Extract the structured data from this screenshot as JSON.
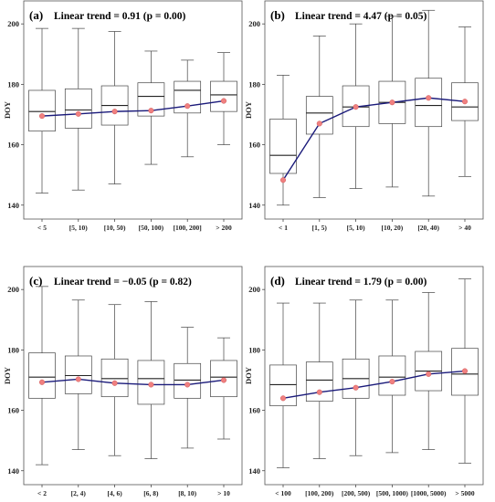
{
  "chart_data": [
    {
      "type": "box",
      "panel_label": "(a)",
      "title": "Linear trend = 0.91 (p = 0.00)",
      "ylabel": "DOY",
      "ylim": [
        136,
        207
      ],
      "yticks": [
        140,
        160,
        180,
        200
      ],
      "categories": [
        "< 5",
        "[5, 10)",
        "[10, 50)",
        "[50, 100)",
        "[100, 200]",
        "> 200"
      ],
      "boxes": [
        {
          "min": 144,
          "q1": 164.5,
          "median": 171,
          "q3": 178,
          "max": 198.5
        },
        {
          "min": 145,
          "q1": 165.5,
          "median": 171.5,
          "q3": 178.5,
          "max": 198.5
        },
        {
          "min": 147,
          "q1": 166.5,
          "median": 173,
          "q3": 179.5,
          "max": 197.5
        },
        {
          "min": 153.5,
          "q1": 169.5,
          "median": 176,
          "q3": 180.5,
          "max": 191
        },
        {
          "min": 156,
          "q1": 170.5,
          "median": 178,
          "q3": 181,
          "max": 188
        },
        {
          "min": 160,
          "q1": 171,
          "median": 176.5,
          "q3": 181,
          "max": 190.5
        }
      ],
      "means": [
        169.5,
        170.2,
        171,
        171.3,
        172.8,
        174.5
      ]
    },
    {
      "type": "box",
      "panel_label": "(b)",
      "title": "Linear trend = 4.47 (p = 0.05)",
      "ylabel": "DOY",
      "ylim": [
        136,
        207
      ],
      "yticks": [
        140,
        160,
        180,
        200
      ],
      "categories": [
        "< 1",
        "[1, 5)",
        "[5, 10)",
        "[10, 20)",
        "[20, 40)",
        "> 40"
      ],
      "boxes": [
        {
          "min": 140,
          "q1": 150.5,
          "median": 156.5,
          "q3": 168.5,
          "max": 183
        },
        {
          "min": 142.5,
          "q1": 163.5,
          "median": 170.5,
          "q3": 176,
          "max": 196
        },
        {
          "min": 145.5,
          "q1": 166,
          "median": 172.5,
          "q3": 179.5,
          "max": 200
        },
        {
          "min": 146,
          "q1": 167,
          "median": 174,
          "q3": 181,
          "max": 202.5
        },
        {
          "min": 143,
          "q1": 166,
          "median": 173,
          "q3": 182,
          "max": 204.5
        },
        {
          "min": 149.5,
          "q1": 168,
          "median": 172.5,
          "q3": 180.5,
          "max": 199
        }
      ],
      "means": [
        148.3,
        167,
        172.5,
        174,
        175.5,
        174.3
      ]
    },
    {
      "type": "box",
      "panel_label": "(c)",
      "title": "Linear trend = −0.05 (p = 0.82)",
      "ylabel": "DOY",
      "ylim": [
        136,
        207
      ],
      "yticks": [
        140,
        160,
        180,
        200
      ],
      "categories": [
        "< 2",
        "[2, 4)",
        "[4, 6)",
        "[6, 8)",
        "[8, 10)",
        "> 10"
      ],
      "boxes": [
        {
          "min": 142,
          "q1": 164,
          "median": 171,
          "q3": 179,
          "max": 201
        },
        {
          "min": 147,
          "q1": 165.5,
          "median": 171.5,
          "q3": 178,
          "max": 196.5
        },
        {
          "min": 145,
          "q1": 164.5,
          "median": 170.5,
          "q3": 177,
          "max": 195
        },
        {
          "min": 144,
          "q1": 162,
          "median": 170.5,
          "q3": 176.5,
          "max": 196
        },
        {
          "min": 147.5,
          "q1": 164,
          "median": 170,
          "q3": 175.5,
          "max": 187.5
        },
        {
          "min": 150.5,
          "q1": 164.5,
          "median": 171,
          "q3": 176.5,
          "max": 184
        }
      ],
      "means": [
        169.3,
        170.3,
        169,
        168.5,
        168.5,
        170
      ]
    },
    {
      "type": "box",
      "panel_label": "(d)",
      "title": "Linear trend =  1.79 (p = 0.00)",
      "ylabel": "DOY",
      "ylim": [
        136,
        207
      ],
      "yticks": [
        140,
        160,
        180,
        200
      ],
      "categories": [
        "< 100",
        "[100, 200)",
        "[200, 500)",
        "[500, 1000)",
        "[1000, 5000)",
        "> 5000"
      ],
      "boxes": [
        {
          "min": 141,
          "q1": 161.5,
          "median": 168.5,
          "q3": 175,
          "max": 195.5
        },
        {
          "min": 144,
          "q1": 163,
          "median": 170,
          "q3": 176,
          "max": 195.5
        },
        {
          "min": 145,
          "q1": 164,
          "median": 170.5,
          "q3": 177,
          "max": 196.5
        },
        {
          "min": 146,
          "q1": 165,
          "median": 171,
          "q3": 178,
          "max": 196.5
        },
        {
          "min": 147,
          "q1": 166.5,
          "median": 173,
          "q3": 179.5,
          "max": 199
        },
        {
          "min": 142.5,
          "q1": 165,
          "median": 172,
          "q3": 180.5,
          "max": 203.5
        }
      ],
      "means": [
        164,
        166,
        167.5,
        169.5,
        172,
        173
      ]
    }
  ],
  "colors": {
    "trend_line": "#1a1a7a",
    "mean_point": "#f08080",
    "box_stroke": "#444444"
  }
}
